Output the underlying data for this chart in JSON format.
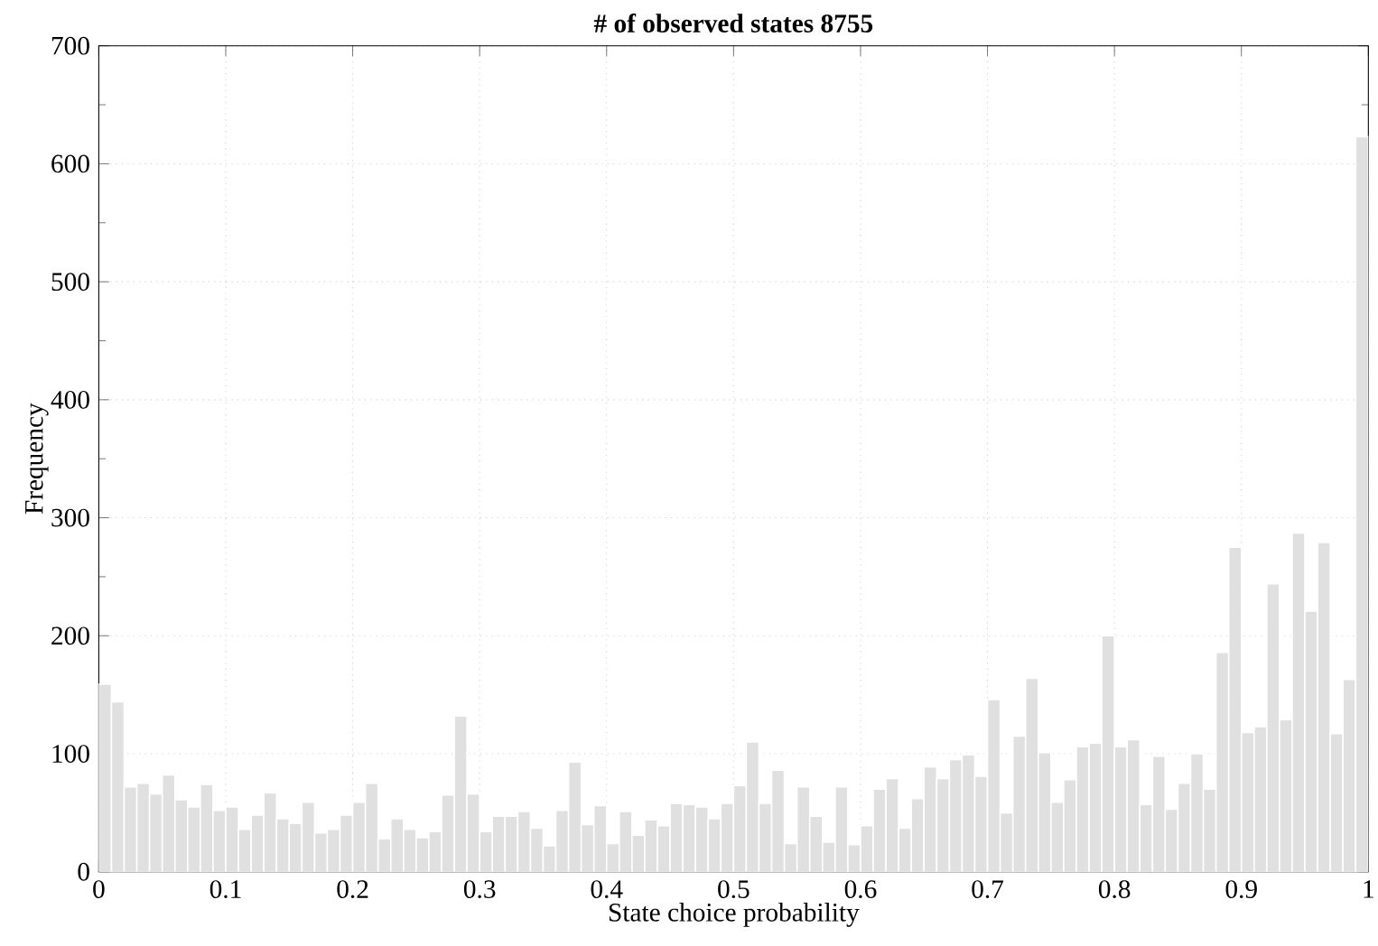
{
  "chart_data": {
    "type": "histogram",
    "title": "# of observed states 8755",
    "xlabel": "State choice probability",
    "ylabel": "Frequency",
    "bins": [
      0,
      0.01,
      0.02,
      0.03,
      0.04,
      0.05,
      0.06,
      0.07,
      0.08,
      0.09,
      0.1,
      0.11,
      0.12,
      0.13,
      0.14,
      0.15,
      0.16,
      0.17,
      0.18,
      0.19,
      0.2,
      0.21,
      0.22,
      0.23,
      0.24,
      0.25,
      0.26,
      0.27,
      0.28,
      0.29,
      0.3,
      0.31,
      0.32,
      0.33,
      0.34,
      0.35,
      0.36,
      0.37,
      0.38,
      0.39,
      0.4,
      0.41,
      0.42,
      0.43,
      0.44,
      0.45,
      0.46,
      0.47,
      0.48,
      0.49,
      0.5,
      0.51,
      0.52,
      0.53,
      0.54,
      0.55,
      0.56,
      0.57,
      0.58,
      0.59,
      0.6,
      0.61,
      0.62,
      0.63,
      0.64,
      0.65,
      0.66,
      0.67,
      0.68,
      0.69,
      0.7,
      0.71,
      0.72,
      0.73,
      0.74,
      0.75,
      0.76,
      0.77,
      0.78,
      0.79,
      0.8,
      0.81,
      0.82,
      0.83,
      0.84,
      0.85,
      0.86,
      0.87,
      0.88,
      0.89,
      0.9,
      0.91,
      0.92,
      0.93,
      0.94,
      0.95,
      0.96,
      0.97,
      0.98,
      0.99,
      1
    ],
    "values": [
      159,
      144,
      72,
      75,
      66,
      82,
      61,
      55,
      74,
      52,
      55,
      36,
      48,
      67,
      45,
      41,
      59,
      33,
      36,
      48,
      59,
      75,
      28,
      45,
      36,
      29,
      34,
      65,
      132,
      66,
      34,
      47,
      47,
      51,
      37,
      22,
      52,
      93,
      40,
      56,
      24,
      51,
      31,
      44,
      39,
      58,
      57,
      55,
      45,
      58,
      73,
      110,
      58,
      86,
      24,
      72,
      47,
      25,
      72,
      23,
      39,
      70,
      79,
      37,
      62,
      89,
      79,
      95,
      99,
      81,
      146,
      50,
      115,
      164,
      101,
      59,
      78,
      106,
      109,
      200,
      106,
      112,
      57,
      98,
      53,
      75,
      100,
      70,
      186,
      275,
      118,
      123,
      244,
      129,
      287,
      221,
      279,
      117,
      163,
      623
    ],
    "color": "#e0e0e0",
    "xlim": [
      0,
      1
    ],
    "xticks": [
      0,
      0.1,
      0.2,
      0.3,
      0.4,
      0.5,
      0.6,
      0.7,
      0.8,
      0.9,
      1
    ],
    "ylim": [
      0,
      700
    ],
    "yticks": [
      0,
      100,
      200,
      300,
      400,
      500,
      600,
      700
    ],
    "grid": true
  }
}
